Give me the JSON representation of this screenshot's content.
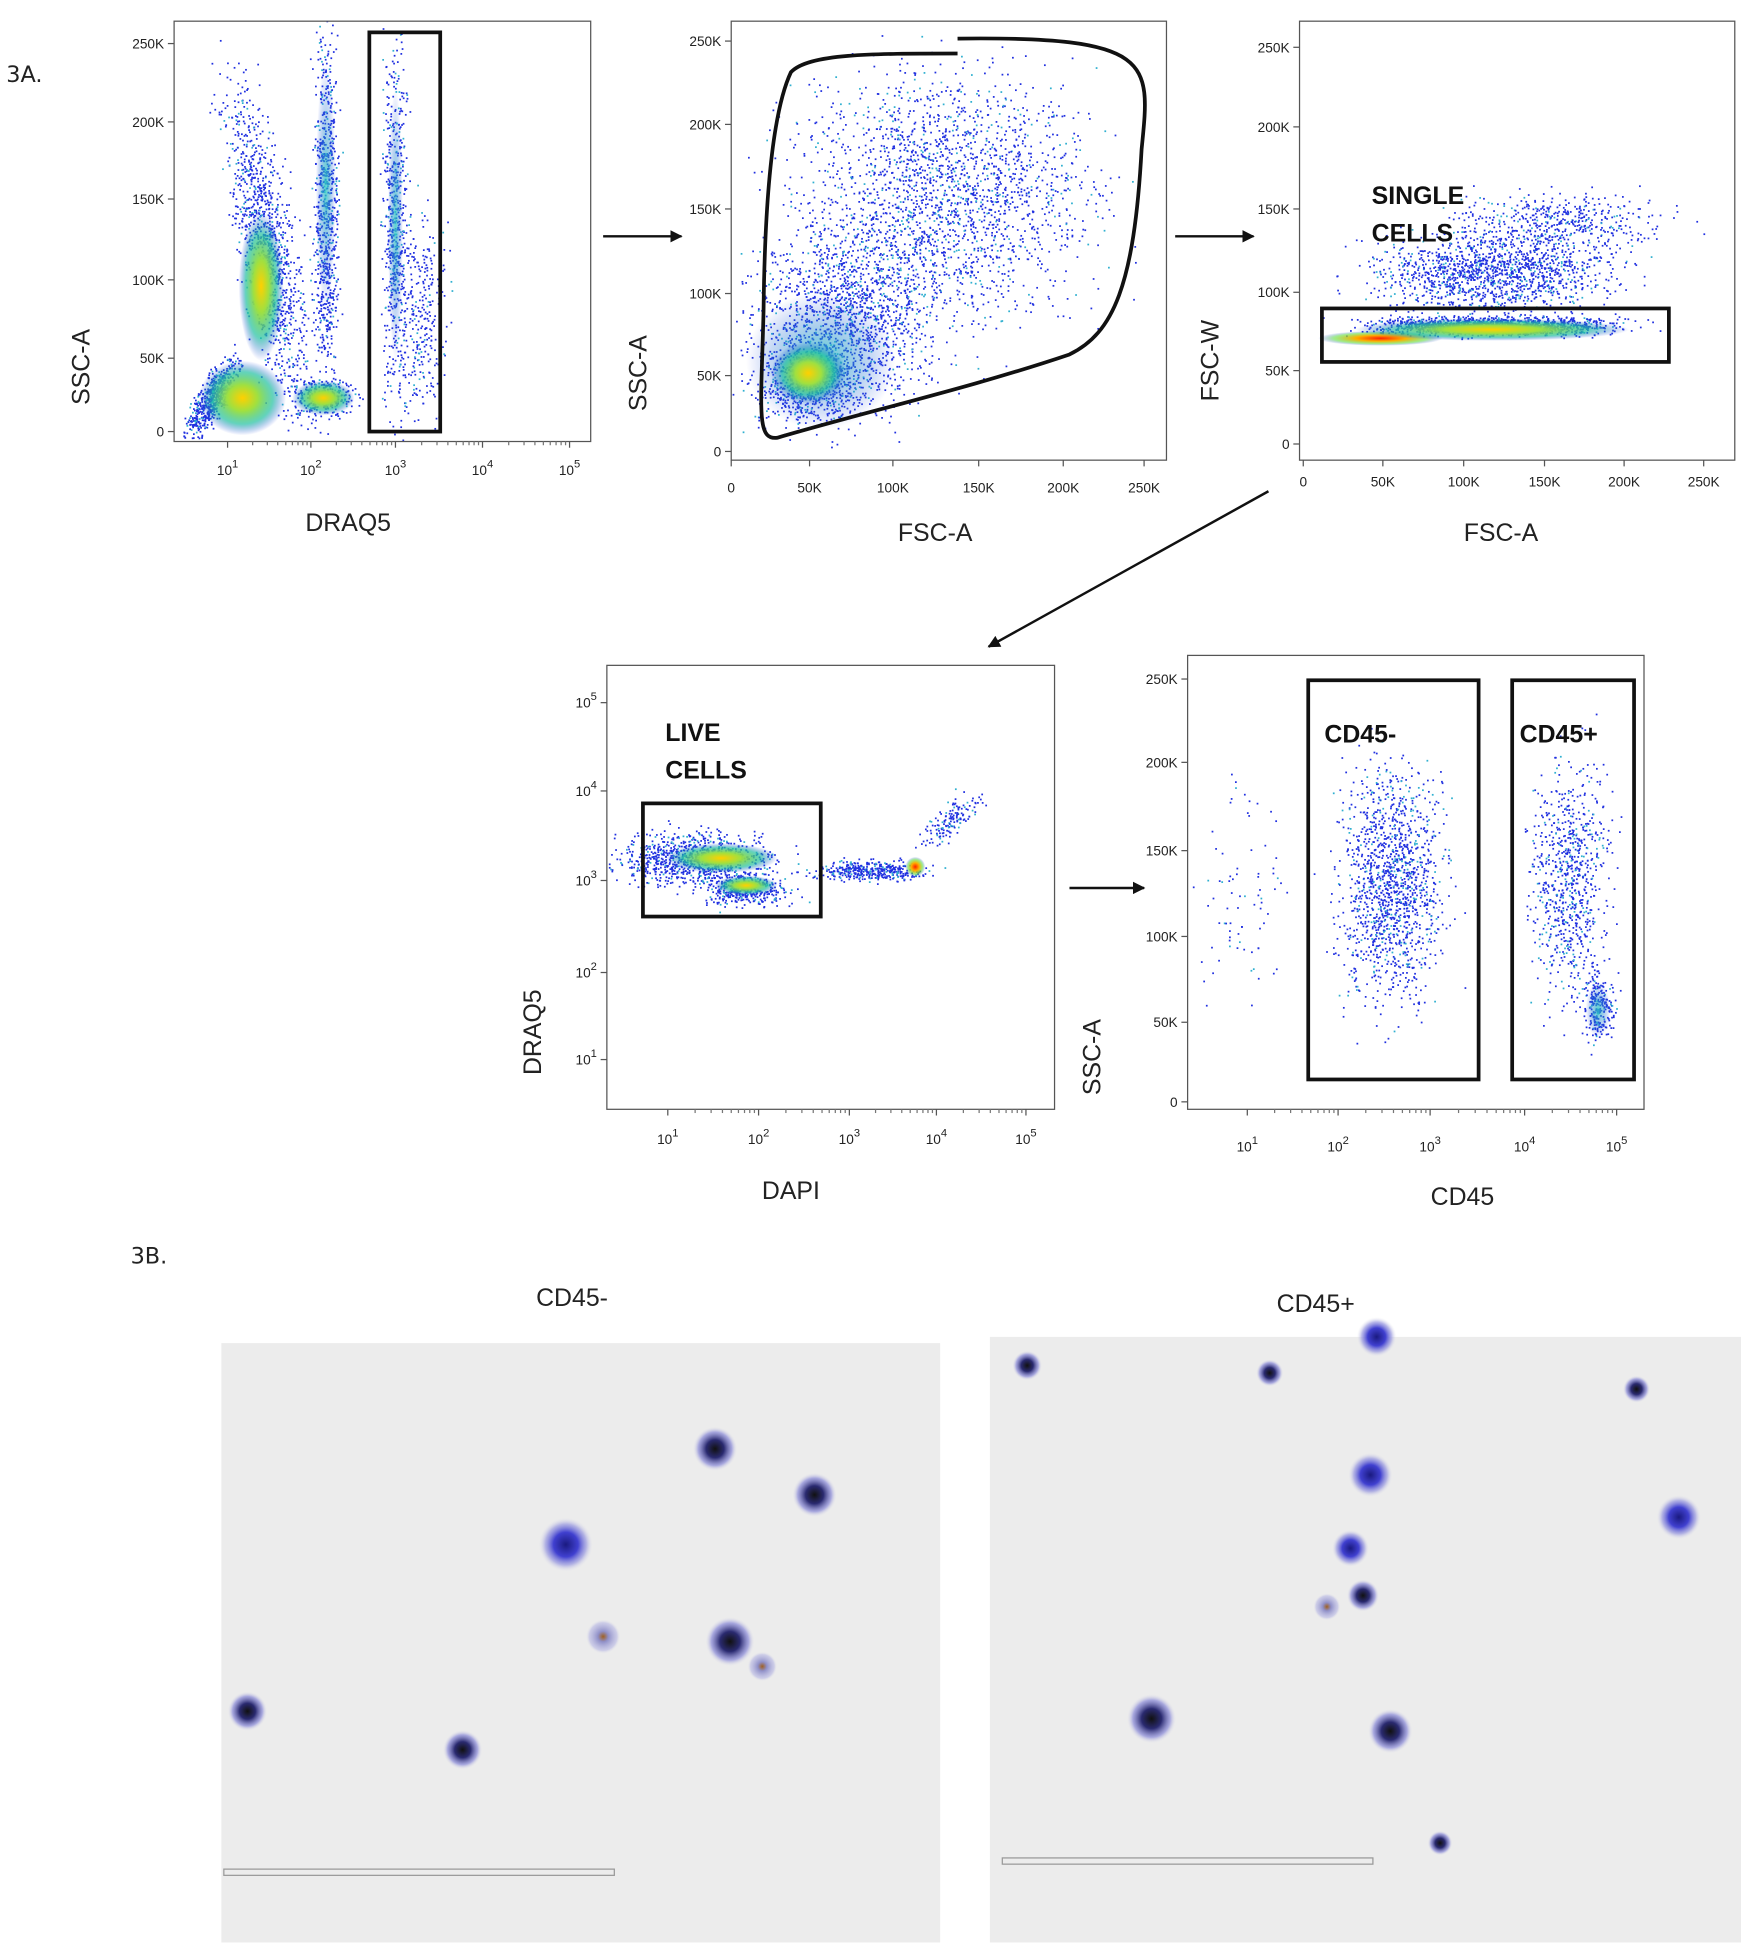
{
  "figure_a": {
    "label": "3A.",
    "panels": [
      {
        "y_axis_label": "SSC-A",
        "x_axis_label": "DRAQ5",
        "y_ticks": [
          "250K",
          "200K",
          "150K",
          "100K",
          "50K",
          "0"
        ],
        "x_ticks": [
          {
            "base": "10",
            "exp": "1"
          },
          {
            "base": "10",
            "exp": "2"
          },
          {
            "base": "10",
            "exp": "3"
          },
          {
            "base": "10",
            "exp": "4"
          },
          {
            "base": "10",
            "exp": "5"
          }
        ],
        "gate_labels": []
      },
      {
        "y_axis_label": "SSC-A",
        "x_axis_label": "FSC-A",
        "y_ticks": [
          "250K",
          "200K",
          "150K",
          "100K",
          "50K",
          "0"
        ],
        "x_ticks": [
          "0",
          "50K",
          "100K",
          "150K",
          "200K",
          "250K"
        ],
        "gate_labels": []
      },
      {
        "y_axis_label": "FSC-W",
        "x_axis_label": "FSC-A",
        "y_ticks": [
          "250K",
          "200K",
          "150K",
          "100K",
          "50K",
          "0"
        ],
        "x_ticks": [
          "0",
          "50K",
          "100K",
          "150K",
          "200K",
          "250K"
        ],
        "gate_labels": [
          [
            "SINGLE",
            "CELLS"
          ]
        ]
      },
      {
        "y_axis_label": "DRAQ5",
        "x_axis_label": "DAPI",
        "y_ticks": [
          {
            "base": "10",
            "exp": "5"
          },
          {
            "base": "10",
            "exp": "4"
          },
          {
            "base": "10",
            "exp": "3"
          },
          {
            "base": "10",
            "exp": "2"
          },
          {
            "base": "10",
            "exp": "1"
          }
        ],
        "x_ticks": [
          {
            "base": "10",
            "exp": "1"
          },
          {
            "base": "10",
            "exp": "2"
          },
          {
            "base": "10",
            "exp": "3"
          },
          {
            "base": "10",
            "exp": "4"
          },
          {
            "base": "10",
            "exp": "5"
          }
        ],
        "gate_labels": [
          [
            "LIVE",
            "CELLS"
          ]
        ]
      },
      {
        "y_axis_label": "SSC-A",
        "x_axis_label": "CD45",
        "y_ticks": [
          "250K",
          "200K",
          "150K",
          "100K",
          "50K",
          "0"
        ],
        "x_ticks": [
          {
            "base": "10",
            "exp": "1"
          },
          {
            "base": "10",
            "exp": "2"
          },
          {
            "base": "10",
            "exp": "3"
          },
          {
            "base": "10",
            "exp": "4"
          },
          {
            "base": "10",
            "exp": "5"
          }
        ],
        "gate_labels": [
          [
            "CD45-"
          ],
          [
            "CD45+"
          ]
        ]
      }
    ]
  },
  "figure_b": {
    "label": "3B.",
    "images": [
      {
        "title": "CD45-"
      },
      {
        "title": "CD45+"
      }
    ]
  }
}
